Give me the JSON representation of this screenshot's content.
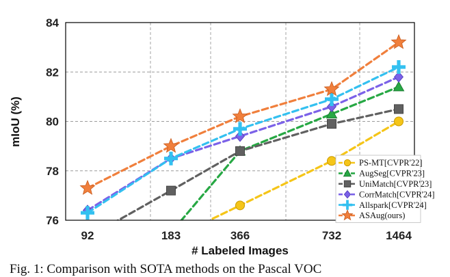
{
  "chart_data": {
    "type": "line",
    "categories": [
      "92",
      "183",
      "366",
      "732",
      "1464"
    ],
    "xlabel": "# Labeled Images",
    "ylabel": "mIoU (%)",
    "ylim": [
      76,
      84
    ],
    "yticks": [
      76,
      78,
      80,
      82,
      84
    ],
    "grid": true,
    "legend_position": "bottom-right",
    "series": [
      {
        "name": "PS-MT[CVPR'22]",
        "values": [
          null,
          null,
          76.6,
          78.4,
          80.0
        ],
        "color": "#F5C518",
        "marker": "circle"
      },
      {
        "name": "AugSeg[CVPR'23]",
        "values": [
          null,
          75.5,
          78.8,
          80.3,
          81.4
        ],
        "color": "#27A844",
        "marker": "triangle"
      },
      {
        "name": "UniMatch[CVPR'23]",
        "values": [
          75.3,
          77.2,
          78.8,
          79.9,
          80.5
        ],
        "color": "#606060",
        "marker": "square"
      },
      {
        "name": "CorrMatch[CVPR'24]",
        "values": [
          76.4,
          78.5,
          79.4,
          80.6,
          81.8
        ],
        "color": "#7B61E8",
        "marker": "diamond"
      },
      {
        "name": "Allspark[CVPR'24]",
        "values": [
          76.3,
          78.5,
          79.7,
          80.9,
          82.2
        ],
        "color": "#33C0F0",
        "marker": "plus"
      },
      {
        "name": "ASAug(ours)",
        "values": [
          77.3,
          79.0,
          80.2,
          81.3,
          83.2
        ],
        "color": "#F07F3C",
        "marker": "star"
      }
    ]
  },
  "caption": "Fig. 1: Comparison with SOTA methods on the Pascal VOC"
}
